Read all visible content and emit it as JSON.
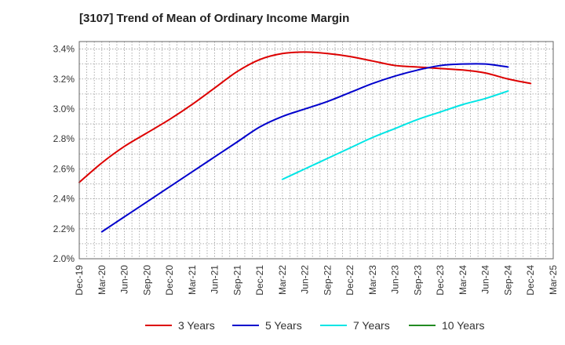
{
  "chart_data": {
    "type": "line",
    "title": "[3107]  Trend of Mean of Ordinary Income Margin",
    "xlabel": "",
    "ylabel": "",
    "x_tick_labels": [
      "Dec-19",
      "Mar-20",
      "Jun-20",
      "Sep-20",
      "Dec-20",
      "Mar-21",
      "Jun-21",
      "Sep-21",
      "Dec-21",
      "Mar-22",
      "Jun-22",
      "Sep-22",
      "Dec-22",
      "Mar-23",
      "Jun-23",
      "Sep-23",
      "Dec-23",
      "Mar-24",
      "Jun-24",
      "Sep-24",
      "Dec-24",
      "Mar-25"
    ],
    "y_tick_labels": [
      "2.0%",
      "2.2%",
      "2.4%",
      "2.6%",
      "2.8%",
      "3.0%",
      "3.2%",
      "3.4%"
    ],
    "ylim": [
      2.0,
      3.45
    ],
    "y_unit": "%",
    "grid": true,
    "legend_position": "bottom",
    "series": [
      {
        "name": "3 Years",
        "color": "#dd0000",
        "start_index": 0,
        "values": [
          2.51,
          2.64,
          2.75,
          2.84,
          2.93,
          3.03,
          3.14,
          3.25,
          3.33,
          3.37,
          3.38,
          3.37,
          3.35,
          3.32,
          3.29,
          3.28,
          3.27,
          3.26,
          3.24,
          3.2,
          3.17
        ]
      },
      {
        "name": "5 Years",
        "color": "#0000cc",
        "start_index": 1,
        "values": [
          2.18,
          2.28,
          2.38,
          2.48,
          2.58,
          2.68,
          2.78,
          2.88,
          2.95,
          3.0,
          3.05,
          3.11,
          3.17,
          3.22,
          3.26,
          3.29,
          3.3,
          3.3,
          3.28
        ]
      },
      {
        "name": "7 Years",
        "color": "#00e5e5",
        "start_index": 9,
        "values": [
          2.53,
          2.6,
          2.67,
          2.74,
          2.81,
          2.87,
          2.93,
          2.98,
          3.03,
          3.07,
          3.12
        ]
      },
      {
        "name": "10 Years",
        "color": "#228B22",
        "start_index": 0,
        "values": []
      }
    ]
  }
}
